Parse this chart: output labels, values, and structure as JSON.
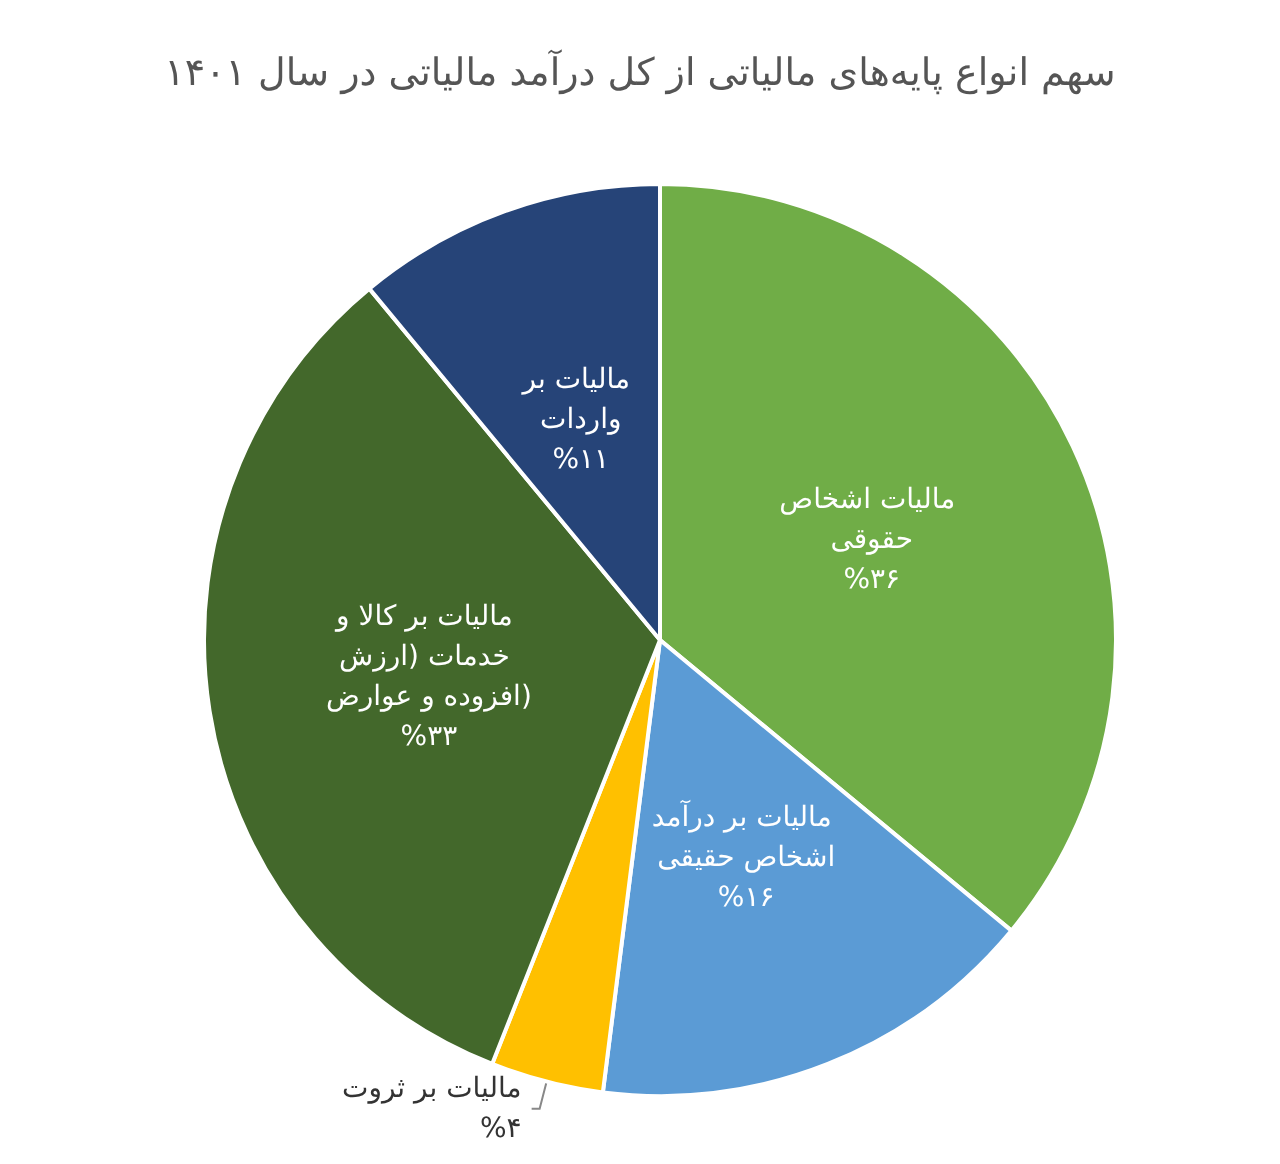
{
  "chart_data": {
    "type": "pie",
    "title": "سهم انواع پایه‌های مالیاتی از کل درآمد مالیاتی در سال ۱۴۰۱",
    "categories": [
      "مالیات اشخاص حقوقی",
      "مالیات بر درآمد اشخاص حقیقی",
      "مالیات بر ثروت",
      "مالیات بر کالا و خدمات (ارزش افزوده و عوارض)",
      "مالیات بر واردات"
    ],
    "values": [
      36,
      16,
      4,
      33,
      11
    ],
    "value_labels": [
      "%۳۶",
      "%۱۶",
      "%۴",
      "%۳۳",
      "%۱۱"
    ],
    "colors": [
      "#70ad47",
      "#5b9bd5",
      "#ffc000",
      "#43682b",
      "#264478"
    ],
    "legend": false
  }
}
